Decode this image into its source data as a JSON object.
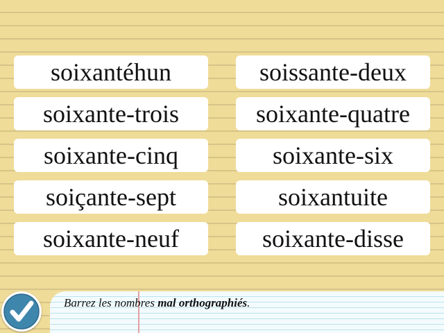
{
  "words": [
    "soixantéhun",
    "soissante-deux",
    "soixante-trois",
    "soixante-quatre",
    "soixante-cinq",
    "soixante-six",
    "soiçante-sept",
    "soixantuite",
    "soixante-neuf",
    "soixante-disse"
  ],
  "instruction": {
    "prefix": "Barrez les nombres ",
    "emphasis": "mal orthographiés",
    "suffix": "."
  },
  "check_button": {
    "icon": "checkmark-icon",
    "color": "#3f86ad"
  },
  "colors": {
    "background": "#efdc98",
    "card": "#ffffff",
    "panel": "#f4fbfd"
  }
}
